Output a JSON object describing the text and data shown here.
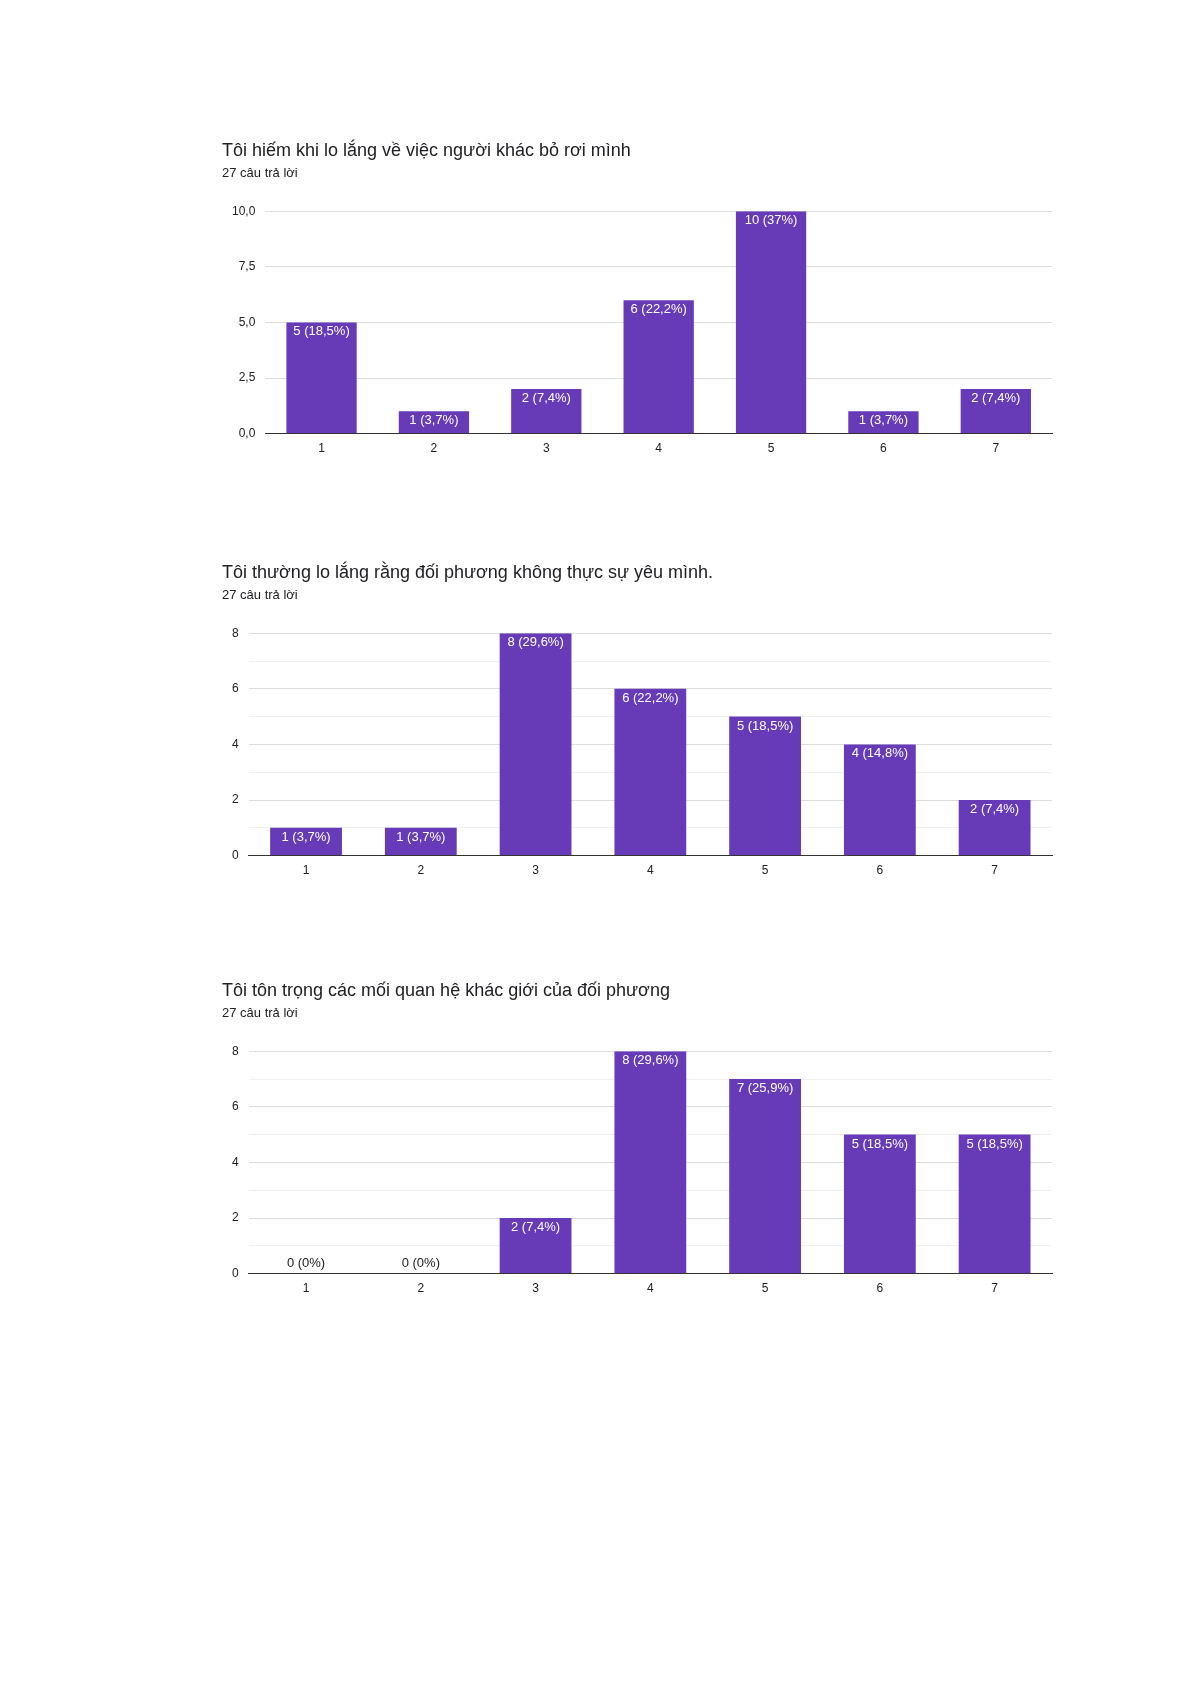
{
  "chart_data": [
    {
      "type": "bar",
      "title": "Tôi hiếm khi lo lắng về việc người khác bỏ rơi mình",
      "subtitle": "27 câu trả lời",
      "categories": [
        "1",
        "2",
        "3",
        "4",
        "5",
        "6",
        "7"
      ],
      "values": [
        5,
        1,
        2,
        6,
        10,
        1,
        2
      ],
      "color": "#673ab7",
      "value_labels": [
        "5 (18,5%)",
        "1 (3,7%)",
        "2 (7,4%)",
        "6 (22,2%)",
        "10 (37%)",
        "1 (3,7%)",
        "2 (7,4%)"
      ],
      "ylim": [
        0,
        10
      ],
      "yticks": [
        {
          "value": 0,
          "label": "0,0"
        },
        {
          "value": 2.5,
          "label": "2,5"
        },
        {
          "value": 5,
          "label": "5,0"
        },
        {
          "value": 7.5,
          "label": "7,5"
        },
        {
          "value": 10,
          "label": "10,0"
        }
      ],
      "grid": "y",
      "legend": false
    },
    {
      "type": "bar",
      "title": "Tôi thường lo lắng rằng đối phương không thực sự yêu mình.",
      "subtitle": "27 câu trả lời",
      "categories": [
        "1",
        "2",
        "3",
        "4",
        "5",
        "6",
        "7"
      ],
      "values": [
        1,
        1,
        8,
        6,
        5,
        4,
        2
      ],
      "color": "#673ab7",
      "value_labels": [
        "1 (3,7%)",
        "1 (3,7%)",
        "8 (29,6%)",
        "6 (22,2%)",
        "5 (18,5%)",
        "4 (14,8%)",
        "2 (7,4%)"
      ],
      "ylim": [
        0,
        8
      ],
      "yticks": [
        0,
        {
          "value": 1,
          "label": null
        },
        2,
        {
          "value": 3,
          "label": null
        },
        4,
        {
          "value": 5,
          "label": null
        },
        6,
        {
          "value": 7,
          "label": null
        },
        8
      ],
      "grid": "y",
      "legend": false
    },
    {
      "type": "bar",
      "title": "Tôi tôn trọng các mối quan hệ khác giới của đối phương",
      "subtitle": "27 câu trả lời",
      "categories": [
        "1",
        "2",
        "3",
        "4",
        "5",
        "6",
        "7"
      ],
      "values": [
        0,
        0,
        2,
        8,
        7,
        5,
        5
      ],
      "color": "#673ab7",
      "value_labels": [
        "0 (0%)",
        "0 (0%)",
        "2 (7,4%)",
        "8 (29,6%)",
        "7 (25,9%)",
        "5 (18,5%)",
        "5 (18,5%)"
      ],
      "ylim": [
        0,
        8
      ],
      "yticks": [
        0,
        {
          "value": 1,
          "label": null
        },
        2,
        {
          "value": 3,
          "label": null
        },
        4,
        {
          "value": 5,
          "label": null
        },
        6,
        {
          "value": 7,
          "label": null
        },
        8
      ],
      "grid": "y",
      "legend": false
    }
  ]
}
